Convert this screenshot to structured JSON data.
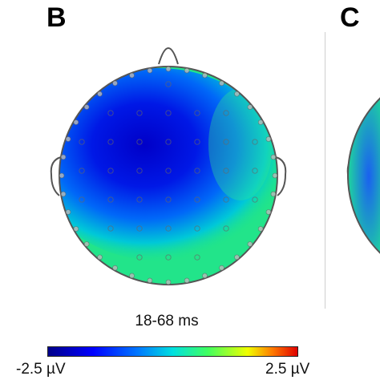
{
  "panels": [
    {
      "label": "B",
      "time_window": "18-68 ms"
    },
    {
      "label": "C"
    }
  ],
  "colorbar": {
    "min_label": "-2.5 µV",
    "max_label": "2.5 µV",
    "colors": [
      "#00008a",
      "#0000ff",
      "#0078ff",
      "#00e0e0",
      "#40ff60",
      "#f0ff00",
      "#ff7a00",
      "#e00000"
    ]
  },
  "topomap": {
    "head_outline_color": "#555555",
    "electrode_color": "#666666"
  }
}
